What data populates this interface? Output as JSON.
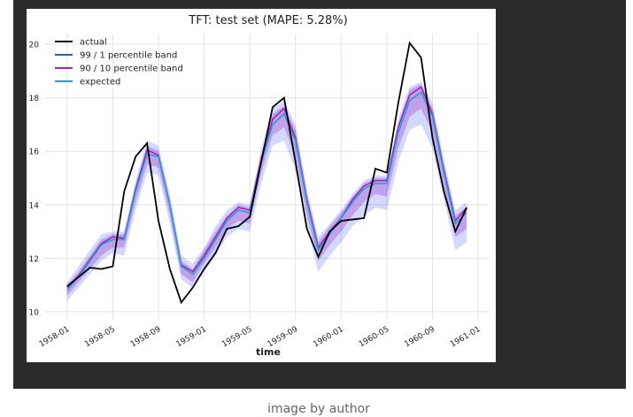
{
  "caption": "image by author",
  "chart_data": {
    "type": "line",
    "title": "TFT: test set (MAPE: 5.28%)",
    "x_label": "time",
    "x": [
      "1958-01",
      "1958-02",
      "1958-03",
      "1958-04",
      "1958-05",
      "1958-06",
      "1958-07",
      "1958-08",
      "1958-09",
      "1958-10",
      "1958-11",
      "1958-12",
      "1959-01",
      "1959-02",
      "1959-03",
      "1959-04",
      "1959-05",
      "1959-06",
      "1959-07",
      "1959-08",
      "1959-09",
      "1959-10",
      "1959-11",
      "1959-12",
      "1960-01",
      "1960-02",
      "1960-03",
      "1960-04",
      "1960-05",
      "1960-06",
      "1960-07",
      "1960-08",
      "1960-09",
      "1960-10",
      "1960-11",
      "1960-12"
    ],
    "xlim": [
      "1957-11",
      "1961-02"
    ],
    "xticks": [
      "1958-01",
      "1958-05",
      "1958-09",
      "1959-01",
      "1959-05",
      "1959-09",
      "1960-01",
      "1960-05",
      "1960-09",
      "1961-01"
    ],
    "ylim": [
      9.7,
      20.4
    ],
    "yticks": [
      10,
      12,
      14,
      16,
      18,
      20
    ],
    "grid": true,
    "legend": "upper left",
    "series": [
      {
        "name": "actual",
        "color": "#000000",
        "values": [
          10.95,
          11.3,
          11.65,
          11.6,
          11.7,
          14.5,
          15.8,
          16.3,
          13.4,
          11.6,
          10.35,
          10.9,
          11.6,
          12.2,
          13.1,
          13.2,
          13.55,
          15.6,
          17.65,
          18.0,
          15.6,
          13.1,
          12.05,
          13.0,
          13.4,
          13.45,
          13.5,
          15.35,
          15.2,
          17.8,
          20.05,
          19.5,
          16.5,
          14.5,
          13.0,
          13.9
        ]
      },
      {
        "name": "99 / 1 percentile band",
        "color": "#3050f0",
        "lower": [
          10.4,
          10.9,
          11.4,
          11.9,
          12.2,
          12.1,
          13.8,
          15.2,
          15.1,
          13.3,
          11.2,
          10.9,
          11.5,
          12.1,
          12.8,
          13.1,
          13.0,
          14.8,
          16.2,
          16.4,
          15.3,
          13.2,
          11.5,
          12.1,
          12.6,
          13.2,
          13.6,
          13.9,
          13.8,
          15.6,
          16.8,
          17.0,
          16.1,
          14.2,
          12.3,
          12.6
        ],
        "upper": [
          11.1,
          11.7,
          12.3,
          12.9,
          13.0,
          13.0,
          14.9,
          16.4,
          16.2,
          14.4,
          12.1,
          11.8,
          12.4,
          13.2,
          13.8,
          14.1,
          14.0,
          16.1,
          17.6,
          17.9,
          17.0,
          14.6,
          12.8,
          13.3,
          13.8,
          14.4,
          14.9,
          15.1,
          15.1,
          17.2,
          18.4,
          18.6,
          17.8,
          15.7,
          13.8,
          14.1
        ]
      },
      {
        "name": "90 / 10 percentile band",
        "color": "#a020c0",
        "values": [
          10.9,
          11.35,
          11.95,
          12.55,
          12.8,
          12.75,
          14.6,
          16.05,
          15.85,
          14.0,
          11.75,
          11.5,
          12.1,
          12.8,
          13.5,
          13.9,
          13.8,
          15.7,
          17.2,
          17.6,
          16.5,
          14.2,
          12.4,
          13.0,
          13.5,
          14.2,
          14.7,
          14.9,
          14.9,
          16.9,
          18.1,
          18.4,
          17.4,
          15.3,
          13.4,
          13.9
        ],
        "lower": [
          10.6,
          11.1,
          11.6,
          12.1,
          12.4,
          12.4,
          14.1,
          15.5,
          15.4,
          13.6,
          11.4,
          11.1,
          11.8,
          12.4,
          13.1,
          13.4,
          13.3,
          15.2,
          16.6,
          16.9,
          15.8,
          13.6,
          11.9,
          12.5,
          13.0,
          13.6,
          14.1,
          14.4,
          14.3,
          16.1,
          17.3,
          17.6,
          16.7,
          14.7,
          12.8,
          13.1
        ],
        "upper": [
          11.0,
          11.5,
          12.1,
          12.7,
          12.9,
          12.9,
          14.7,
          16.2,
          16.0,
          14.2,
          11.9,
          11.6,
          12.3,
          13.0,
          13.6,
          14.0,
          13.9,
          15.9,
          17.4,
          17.7,
          16.8,
          14.4,
          12.6,
          13.2,
          13.7,
          14.3,
          14.8,
          15.0,
          15.0,
          17.0,
          18.3,
          18.5,
          17.6,
          15.5,
          13.6,
          13.9
        ]
      },
      {
        "name": "expected",
        "color": "#1ea0d0",
        "values": [
          10.8,
          11.3,
          11.9,
          12.5,
          12.7,
          12.7,
          14.5,
          15.9,
          15.8,
          14.0,
          11.7,
          11.4,
          12.0,
          12.7,
          13.4,
          13.8,
          13.7,
          15.6,
          17.0,
          17.4,
          16.4,
          14.1,
          12.3,
          12.9,
          13.5,
          14.1,
          14.6,
          14.8,
          14.8,
          16.7,
          17.9,
          18.2,
          17.3,
          15.2,
          13.3,
          13.7
        ]
      }
    ]
  }
}
